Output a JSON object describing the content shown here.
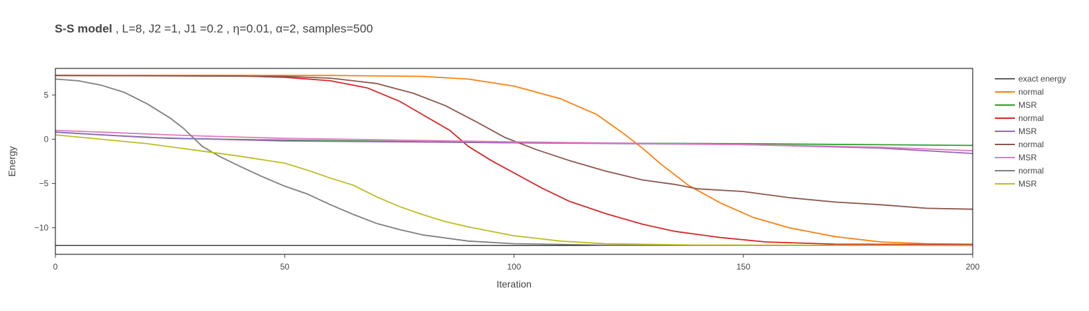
{
  "title": {
    "bold": "S-S model",
    "rest": " , L=8, J2 =1, J1 =0.2 , η=0.01, α=2, samples=500"
  },
  "chart_data": {
    "type": "line",
    "xlabel": "Iteration",
    "ylabel": "Energy",
    "xlim": [
      0,
      200
    ],
    "ylim": [
      -13,
      8
    ],
    "xticks": [
      0,
      50,
      100,
      150,
      200
    ],
    "yticks": [
      5,
      0,
      -5,
      -10
    ],
    "ytick_labels": [
      "5",
      "0",
      "−5",
      "−10"
    ],
    "grid": false,
    "legend_position": "right",
    "exact_energy": -12.0,
    "series": [
      {
        "name": "exact energy",
        "color": "#000000",
        "points": [
          [
            0,
            -12.0
          ],
          [
            200,
            -12.0
          ]
        ]
      },
      {
        "name": "normal",
        "color": "#ff7f0e",
        "points": [
          [
            0,
            7.2
          ],
          [
            60,
            7.2
          ],
          [
            80,
            7.1
          ],
          [
            90,
            6.8
          ],
          [
            100,
            6.0
          ],
          [
            110,
            4.6
          ],
          [
            118,
            2.8
          ],
          [
            124,
            0.6
          ],
          [
            128,
            -1.0
          ],
          [
            132,
            -2.8
          ],
          [
            138,
            -5.2
          ],
          [
            145,
            -7.2
          ],
          [
            152,
            -8.8
          ],
          [
            160,
            -10.0
          ],
          [
            170,
            -11.0
          ],
          [
            180,
            -11.6
          ],
          [
            190,
            -11.8
          ],
          [
            200,
            -11.85
          ]
        ]
      },
      {
        "name": "MSR",
        "color": "#2ca02c",
        "points": [
          [
            0,
            0.8
          ],
          [
            10,
            0.5
          ],
          [
            25,
            0.1
          ],
          [
            50,
            -0.1
          ],
          [
            100,
            -0.4
          ],
          [
            150,
            -0.5
          ],
          [
            200,
            -0.7
          ]
        ]
      },
      {
        "name": "normal",
        "color": "#d62728",
        "points": [
          [
            0,
            7.2
          ],
          [
            40,
            7.15
          ],
          [
            50,
            7.0
          ],
          [
            60,
            6.6
          ],
          [
            68,
            5.8
          ],
          [
            75,
            4.3
          ],
          [
            80,
            2.8
          ],
          [
            86,
            1.0
          ],
          [
            90,
            -0.8
          ],
          [
            95,
            -2.4
          ],
          [
            100,
            -3.8
          ],
          [
            106,
            -5.5
          ],
          [
            112,
            -7.0
          ],
          [
            120,
            -8.4
          ],
          [
            128,
            -9.6
          ],
          [
            135,
            -10.4
          ],
          [
            145,
            -11.1
          ],
          [
            155,
            -11.6
          ],
          [
            170,
            -11.85
          ],
          [
            200,
            -11.9
          ]
        ]
      },
      {
        "name": "MSR",
        "color": "#9467bd",
        "points": [
          [
            0,
            0.8
          ],
          [
            20,
            0.2
          ],
          [
            50,
            -0.2
          ],
          [
            100,
            -0.4
          ],
          [
            150,
            -0.6
          ],
          [
            180,
            -1.0
          ],
          [
            200,
            -1.6
          ]
        ]
      },
      {
        "name": "normal",
        "color": "#8c564b",
        "points": [
          [
            0,
            7.2
          ],
          [
            50,
            7.1
          ],
          [
            60,
            6.9
          ],
          [
            70,
            6.3
          ],
          [
            78,
            5.2
          ],
          [
            85,
            3.8
          ],
          [
            92,
            1.9
          ],
          [
            98,
            0.2
          ],
          [
            105,
            -1.2
          ],
          [
            112,
            -2.4
          ],
          [
            120,
            -3.6
          ],
          [
            128,
            -4.6
          ],
          [
            135,
            -5.1
          ],
          [
            140,
            -5.6
          ],
          [
            150,
            -5.9
          ],
          [
            160,
            -6.6
          ],
          [
            170,
            -7.1
          ],
          [
            180,
            -7.4
          ],
          [
            190,
            -7.8
          ],
          [
            200,
            -7.9
          ]
        ]
      },
      {
        "name": "MSR",
        "color": "#e377c2",
        "points": [
          [
            0,
            1.0
          ],
          [
            10,
            0.8
          ],
          [
            20,
            0.6
          ],
          [
            30,
            0.4
          ],
          [
            50,
            0.1
          ],
          [
            100,
            -0.3
          ],
          [
            150,
            -0.6
          ],
          [
            180,
            -0.9
          ],
          [
            200,
            -1.3
          ]
        ]
      },
      {
        "name": "normal",
        "color": "#7f7f7f",
        "points": [
          [
            0,
            6.8
          ],
          [
            5,
            6.6
          ],
          [
            10,
            6.1
          ],
          [
            15,
            5.3
          ],
          [
            20,
            4.0
          ],
          [
            25,
            2.4
          ],
          [
            28,
            1.2
          ],
          [
            32,
            -0.8
          ],
          [
            36,
            -2.0
          ],
          [
            40,
            -3.0
          ],
          [
            45,
            -4.2
          ],
          [
            50,
            -5.3
          ],
          [
            55,
            -6.2
          ],
          [
            60,
            -7.4
          ],
          [
            65,
            -8.5
          ],
          [
            70,
            -9.5
          ],
          [
            75,
            -10.2
          ],
          [
            80,
            -10.8
          ],
          [
            90,
            -11.5
          ],
          [
            100,
            -11.8
          ],
          [
            120,
            -11.95
          ],
          [
            200,
            -12.0
          ]
        ]
      },
      {
        "name": "MSR",
        "color": "#bcbd22",
        "points": [
          [
            0,
            0.5
          ],
          [
            10,
            0.0
          ],
          [
            20,
            -0.5
          ],
          [
            30,
            -1.2
          ],
          [
            40,
            -1.9
          ],
          [
            50,
            -2.7
          ],
          [
            55,
            -3.5
          ],
          [
            60,
            -4.4
          ],
          [
            65,
            -5.2
          ],
          [
            70,
            -6.5
          ],
          [
            75,
            -7.6
          ],
          [
            80,
            -8.5
          ],
          [
            85,
            -9.3
          ],
          [
            90,
            -9.9
          ],
          [
            95,
            -10.4
          ],
          [
            100,
            -10.9
          ],
          [
            105,
            -11.2
          ],
          [
            110,
            -11.5
          ],
          [
            120,
            -11.8
          ],
          [
            140,
            -11.95
          ],
          [
            200,
            -12.0
          ]
        ]
      }
    ]
  }
}
